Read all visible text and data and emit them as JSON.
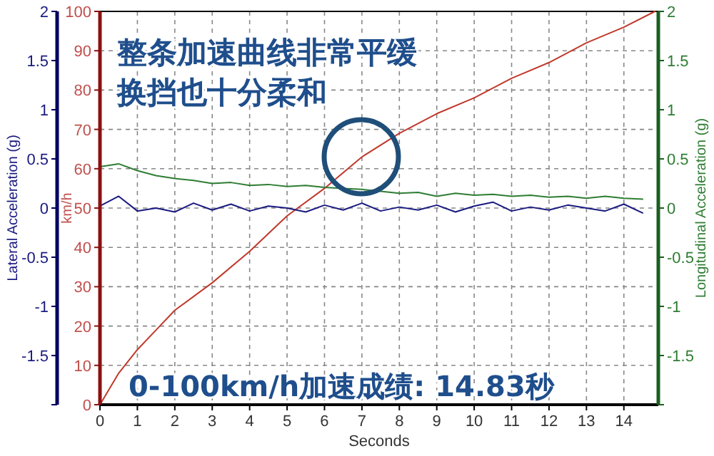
{
  "chart_data": {
    "type": "line",
    "annotations": [
      "整条加速曲线非常平缓",
      "换挡也十分柔和",
      "0-100km/h加速成绩: 14.83秒"
    ],
    "xlabel": "Seconds",
    "ylabel": "km/h",
    "y2label": "Longitudinal Acceleration (g)",
    "y3label": "Lateral Acceleration (g)",
    "xlim": [
      0,
      14.92
    ],
    "xticks": [
      0,
      1,
      2,
      3,
      4,
      5,
      6,
      7,
      8,
      9,
      10,
      11,
      12,
      13,
      14
    ],
    "ylim": [
      0,
      100
    ],
    "yticks": [
      0,
      10,
      20,
      30,
      40,
      50,
      60,
      70,
      80,
      90,
      100
    ],
    "y2lim": [
      -2,
      2
    ],
    "y2ticks": [
      {
        "value": -2,
        "label": null
      },
      -1.5,
      -1,
      -0.5,
      0,
      0.5,
      1,
      1.5,
      2
    ],
    "y3lim": [
      -2,
      2
    ],
    "y3ticks": [
      {
        "value": -2,
        "label": null
      },
      -1.5,
      -1,
      -0.5,
      0,
      0.5,
      1,
      1.5,
      2
    ],
    "grid": true,
    "line_style": "solid",
    "series": [
      {
        "color": "#c0392b",
        "axis": "y",
        "x": [
          0,
          0.5,
          1,
          1.5,
          2,
          3,
          4,
          5,
          6,
          7,
          8,
          9,
          10,
          11,
          12,
          13,
          14,
          14.83
        ],
        "values": [
          0,
          8,
          14,
          19,
          24,
          31,
          39,
          48,
          55,
          63,
          69,
          74,
          78,
          83,
          87,
          92,
          96,
          100
        ]
      },
      {
        "color": "#2e7d32",
        "axis": "y2",
        "x": [
          0,
          0.5,
          1,
          1.5,
          2,
          2.5,
          3,
          3.5,
          4,
          4.5,
          5,
          5.5,
          6,
          6.5,
          7,
          7.5,
          8,
          8.5,
          9,
          9.5,
          10,
          10.5,
          11,
          11.5,
          12,
          12.5,
          13,
          13.5,
          14,
          14.5
        ],
        "values": [
          0.42,
          0.45,
          0.38,
          0.33,
          0.3,
          0.28,
          0.25,
          0.26,
          0.23,
          0.24,
          0.22,
          0.23,
          0.21,
          0.2,
          0.19,
          0.17,
          0.15,
          0.16,
          0.12,
          0.15,
          0.13,
          0.14,
          0.12,
          0.13,
          0.11,
          0.12,
          0.1,
          0.12,
          0.1,
          0.09
        ]
      },
      {
        "color": "#1a1a80",
        "axis": "y3",
        "x": [
          0,
          0.5,
          1,
          1.5,
          2,
          2.5,
          3,
          3.5,
          4,
          4.5,
          5,
          5.5,
          6,
          6.5,
          7,
          7.5,
          8,
          8.5,
          9,
          9.5,
          10,
          10.5,
          11,
          11.5,
          12,
          12.5,
          13,
          13.5,
          14,
          14.5
        ],
        "values": [
          0.02,
          0.12,
          -0.03,
          0,
          -0.04,
          0.05,
          -0.02,
          0.04,
          -0.03,
          0.02,
          0,
          -0.04,
          0.03,
          -0.02,
          0.05,
          -0.03,
          0.01,
          -0.02,
          0.03,
          -0.04,
          0.02,
          0.06,
          -0.03,
          0.01,
          -0.02,
          0.03,
          0,
          -0.03,
          0.04,
          -0.05
        ]
      }
    ]
  }
}
